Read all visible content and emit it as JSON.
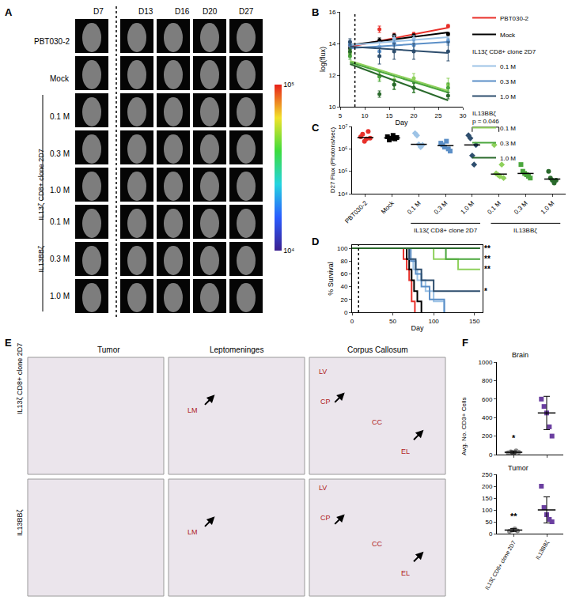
{
  "panel_labels": [
    "A",
    "B",
    "C",
    "D",
    "E",
    "F"
  ],
  "imaging": {
    "columns": [
      "D7",
      "D13",
      "D16",
      "D20",
      "D27"
    ],
    "rows": [
      {
        "label": "PBT030-2"
      },
      {
        "label": "Mock"
      },
      {
        "label": "0.1 M",
        "group": "IL13ζ CD8+ clone 2D7"
      },
      {
        "label": "0.3 M",
        "group": "IL13ζ CD8+ clone 2D7"
      },
      {
        "label": "1.0 M",
        "group": "IL13ζ CD8+ clone 2D7"
      },
      {
        "label": "0.1 M",
        "group": "IL13BBζ"
      },
      {
        "label": "0.3 M",
        "group": "IL13BBζ"
      },
      {
        "label": "1.0 M",
        "group": "IL13BBζ"
      }
    ],
    "colorbar": {
      "range": [
        10000,
        100000
      ],
      "ticks": [
        {
          "value": 10000,
          "label": "10⁴"
        },
        {
          "value": 100000,
          "label": "10⁵"
        }
      ]
    }
  },
  "chart_data": [
    {
      "type": "line",
      "xlabel": "Day",
      "ylabel": "log(flux)",
      "legend": "right",
      "x": [
        7,
        13,
        16,
        20,
        27
      ],
      "fit_x": [
        7,
        27
      ],
      "vline": 8,
      "xlim": [
        5,
        30
      ],
      "xticks": [
        5,
        10,
        15,
        20,
        25,
        30
      ],
      "ylim": [
        10,
        16
      ],
      "yticks": [
        10,
        12,
        14,
        16
      ],
      "series": [
        {
          "name": "PBT030-2",
          "color": "#e8302a",
          "values": [
            13.8,
            14.9,
            14.5,
            14.6,
            15.1
          ],
          "errors": [
            0.3,
            0.2,
            0.15,
            0.1,
            0.1
          ],
          "fit": [
            13.8,
            15.0
          ]
        },
        {
          "name": "Mock",
          "color": "#000000",
          "values": [
            13.7,
            14.2,
            14.5,
            14.5,
            14.6
          ],
          "errors": [
            0.2,
            0.15,
            0.1,
            0.1,
            0.1
          ],
          "fit": [
            13.9,
            14.7
          ]
        },
        {
          "name": "0.1 M",
          "group": "IL13ζ CD8+ clone 2D7",
          "color": "#9dc3e6",
          "values": [
            14.0,
            13.8,
            14.3,
            14.3,
            14.2
          ],
          "errors": [
            0.2,
            0.3,
            0.2,
            0.2,
            0.2
          ],
          "fit": [
            13.9,
            14.4
          ]
        },
        {
          "name": "0.3 M",
          "group": "IL13ζ CD8+ clone 2D7",
          "color": "#5b8fc7",
          "values": [
            13.9,
            13.5,
            14.0,
            13.9,
            14.1
          ],
          "errors": [
            0.2,
            0.3,
            0.2,
            0.3,
            0.2
          ],
          "fit": [
            13.7,
            14.1
          ]
        },
        {
          "name": "1.0 M",
          "group": "IL13ζ CD8+ clone 2D7",
          "color": "#2e4e6e",
          "values": [
            14.1,
            13.2,
            13.5,
            13.5,
            13.5
          ],
          "errors": [
            0.2,
            0.5,
            0.5,
            0.5,
            0.6
          ],
          "fit": [
            13.8,
            13.4
          ]
        },
        {
          "name": "0.1 M",
          "group": "IL13BBζ",
          "color": "#8fd15c",
          "values": [
            13.4,
            12.0,
            11.7,
            11.8,
            11.4
          ],
          "errors": [
            0.2,
            0.3,
            0.3,
            0.3,
            0.4
          ],
          "fit": [
            12.9,
            11.0
          ]
        },
        {
          "name": "0.3 M",
          "group": "IL13BBζ",
          "color": "#4aa63c",
          "values": [
            13.2,
            11.9,
            11.4,
            11.2,
            11.2
          ],
          "errors": [
            0.2,
            0.3,
            0.3,
            0.3,
            0.3
          ],
          "fit": [
            12.8,
            10.9
          ]
        },
        {
          "name": "1.0 M",
          "group": "IL13BBζ",
          "color": "#2a6a2c",
          "values": [
            13.5,
            10.8,
            11.4,
            11.2,
            10.7
          ],
          "errors": [
            0.2,
            0.2,
            0.3,
            0.3,
            0.2
          ],
          "fit": [
            12.7,
            10.4
          ]
        }
      ]
    },
    {
      "type": "scatter",
      "ylabel": "D27 Flux (Photons/sec)",
      "log": "y",
      "categories": [
        "PBT030-2",
        "Mock",
        "0.1 M",
        "0.3 M",
        "1.0 M",
        "0.1 M",
        "0.3 M",
        "1.0 M"
      ],
      "groups": [
        {
          "label": "IL13ζ CD8+ clone 2D7",
          "members": [
            2,
            3,
            4
          ]
        },
        {
          "label": "IL13BBζ",
          "members": [
            5,
            6,
            7
          ]
        }
      ],
      "colors": [
        "#e8302a",
        "#000000",
        "#9dc3e6",
        "#5b8fc7",
        "#2e4e6e",
        "#8fd15c",
        "#4aa63c",
        "#2a6a2c"
      ],
      "points": [
        [
          3500000,
          4500000,
          2200000,
          2800000,
          6000000,
          3000000
        ],
        [
          3500000,
          2500000,
          3000000,
          4000000,
          2800000,
          3200000
        ],
        [
          5000000,
          4000000,
          1600000,
          1200000,
          1500000
        ],
        [
          1800000,
          1500000,
          1200000,
          2200000,
          1000000,
          800000
        ],
        [
          4000000,
          3000000,
          500000,
          200000,
          1500000
        ],
        [
          1500000,
          80000,
          70000,
          60000,
          200000,
          50000
        ],
        [
          200000,
          100000,
          80000,
          70000,
          60000,
          50000
        ],
        [
          100000,
          50000,
          40000,
          30000,
          40000
        ]
      ],
      "medians": [
        3200000,
        3100000,
        1600000,
        1400000,
        1500000,
        75000,
        80000,
        45000
      ],
      "comparison": {
        "label": "p = 0.046",
        "between": [
          4,
          5
        ]
      },
      "ylim": [
        10000,
        10000000
      ],
      "yticks": [
        {
          "value": 10000,
          "label": "10⁴"
        },
        {
          "value": 100000,
          "label": "10⁵"
        },
        {
          "value": 1000000,
          "label": "10⁶"
        },
        {
          "value": 10000000,
          "label": "10⁷"
        }
      ]
    },
    {
      "type": "line",
      "line_style": "step",
      "xlabel": "Day",
      "ylabel": "% Survival",
      "vline": 8,
      "xlim": [
        0,
        160
      ],
      "xticks": [
        0,
        50,
        100,
        150
      ],
      "ylim": [
        0,
        105
      ],
      "yticks": [
        0,
        20,
        40,
        60,
        80,
        100
      ],
      "series": [
        {
          "name": "PBT030-2",
          "color": "#e8302a",
          "x": [
            0,
            63,
            67,
            70,
            73,
            77
          ],
          "values": [
            100,
            83,
            67,
            50,
            17,
            0
          ]
        },
        {
          "name": "Mock",
          "color": "#000000",
          "x": [
            0,
            67,
            70,
            73,
            76,
            80,
            85
          ],
          "values": [
            100,
            83,
            67,
            50,
            33,
            17,
            0
          ]
        },
        {
          "name": "0.1 M",
          "color": "#9dc3e6",
          "x": [
            0,
            70,
            75,
            80,
            90,
            100,
            113
          ],
          "values": [
            100,
            83,
            67,
            50,
            33,
            17,
            0
          ]
        },
        {
          "name": "0.3 M",
          "color": "#5b8fc7",
          "x": [
            0,
            72,
            78,
            85,
            95,
            113
          ],
          "values": [
            100,
            80,
            60,
            40,
            20,
            0
          ]
        },
        {
          "name": "1.0 M",
          "color": "#2e4e6e",
          "x": [
            0,
            70,
            78,
            85,
            100,
            120,
            157
          ],
          "values": [
            100,
            83,
            67,
            50,
            33,
            33,
            33
          ],
          "significance": "*"
        },
        {
          "name": "0.1 M",
          "color": "#8fd15c",
          "x": [
            0,
            100,
            130,
            157
          ],
          "values": [
            100,
            83,
            67,
            67
          ],
          "significance": "**"
        },
        {
          "name": "0.3 M",
          "color": "#4aa63c",
          "x": [
            0,
            115,
            157
          ],
          "values": [
            100,
            83,
            83
          ],
          "significance": "**"
        },
        {
          "name": "1.0 M",
          "color": "#2a6a2c",
          "x": [
            0,
            157
          ],
          "values": [
            100,
            100
          ],
          "significance": "**"
        }
      ]
    },
    {
      "type": "scatter",
      "title": "Brain",
      "ylabel": "Avg. No. CD3+ Cells",
      "tick_labels": "y",
      "categories": [
        "IL13ζ CD8+ clone 2D7",
        "IL13BBζ"
      ],
      "colors": [
        "#8c8c8c",
        "#6b3fa0"
      ],
      "points": [
        [
          20,
          30,
          10,
          40,
          25
        ],
        [
          600,
          520,
          450,
          300,
          200
        ]
      ],
      "means": [
        25,
        450
      ],
      "sd": [
        15,
        180
      ],
      "significance": [
        "*",
        null
      ],
      "ylim": [
        0,
        1000
      ],
      "yticks": [
        0,
        200,
        400,
        600,
        800,
        1000
      ]
    },
    {
      "type": "scatter",
      "title": "Tumor",
      "categories": [
        "IL13ζ CD8+ clone 2D7",
        "IL13BBζ"
      ],
      "colors": [
        "#8c8c8c",
        "#6b3fa0"
      ],
      "points": [
        [
          10,
          15,
          20,
          12
        ],
        [
          200,
          110,
          80,
          60,
          50
        ]
      ],
      "means": [
        15,
        100
      ],
      "sd": [
        6,
        55
      ],
      "significance": [
        "**",
        null
      ],
      "ylim": [
        0,
        250
      ],
      "yticks": [
        0,
        50,
        100,
        150,
        200,
        250
      ]
    }
  ],
  "histology": {
    "columns": [
      "Tumor",
      "Leptomeninges",
      "Corpus Callosum"
    ],
    "rows": [
      "IL13ζ CD8+ clone 2D7",
      "IL13BBζ"
    ],
    "labels": [
      [],
      [
        "LM"
      ],
      [
        "LV",
        "CP",
        "CC",
        "EL"
      ]
    ]
  }
}
